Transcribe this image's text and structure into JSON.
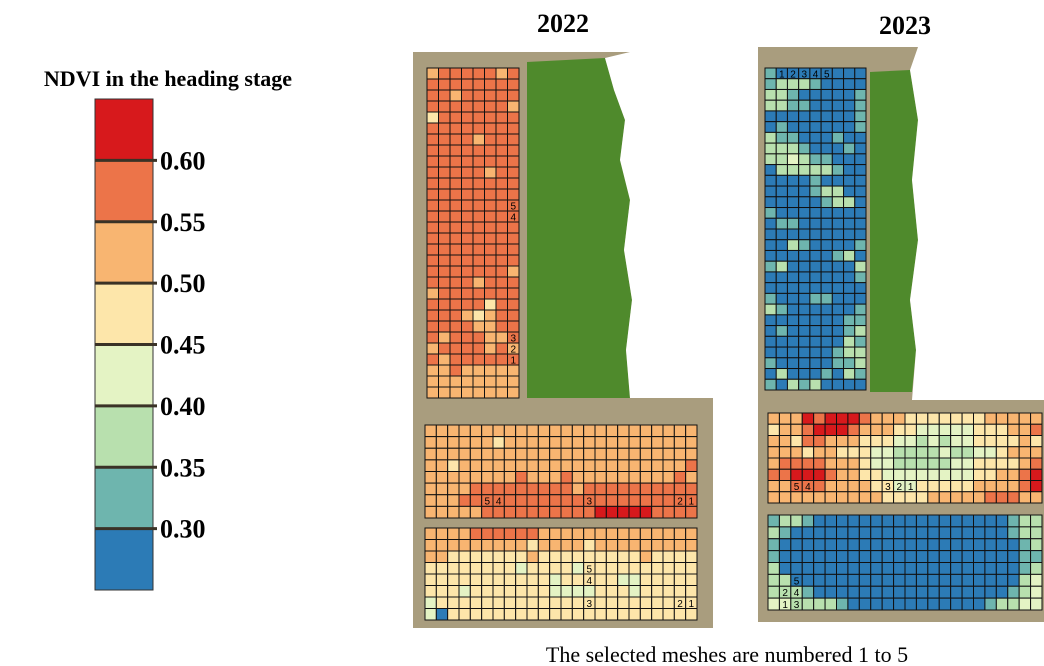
{
  "legend": {
    "title": "NDVI in the heading stage",
    "lim": [
      0.25,
      0.65
    ],
    "ticks": [
      {
        "value": 0.3,
        "label": "0.30"
      },
      {
        "value": 0.35,
        "label": "0.35"
      },
      {
        "value": 0.4,
        "label": "0.40"
      },
      {
        "value": 0.45,
        "label": "0.45"
      },
      {
        "value": 0.5,
        "label": "0.50"
      },
      {
        "value": 0.55,
        "label": "0.55"
      },
      {
        "value": 0.6,
        "label": "0.60"
      }
    ],
    "colors": [
      "#2c7bb6",
      "#6eb5ae",
      "#b8e0ae",
      "#e4f3c4",
      "#fde6aa",
      "#f8b571",
      "#ec7449",
      "#d7191c"
    ]
  },
  "maps": [
    {
      "year": "2022",
      "fields": [
        {
          "rows": [
            "56666656",
            "66666666",
            "66566666",
            "66666665",
            "46666666",
            "66666666",
            "66665666",
            "66666666",
            "66666666",
            "66666566",
            "66666666",
            "66666666",
            "66666666",
            "66666666",
            "66666666",
            "66666666",
            "66666666",
            "66666666",
            "66666665",
            "66665666",
            "56666666",
            "66666466",
            "66654566",
            "66665566",
            "65666556",
            "56666565",
            "65666666",
            "55655555",
            "55555555",
            "55555555"
          ],
          "meshes": [
            {
              "text": "5",
              "row": 12,
              "col": 7
            },
            {
              "text": "4",
              "row": 13,
              "col": 7
            },
            {
              "text": "3",
              "row": 24,
              "col": 7
            },
            {
              "text": "2",
              "row": 25,
              "col": 7
            },
            {
              "text": "1",
              "row": 26,
              "col": 7
            }
          ]
        },
        {
          "rows": [
            "555555555555555555555555",
            "555555455555555555555555",
            "555555555555555555555555",
            "554555555555555555555556",
            "555555556555655555555565",
            "555566666666656666666666",
            "555666666666666666666666",
            "555556666666666777776666"
          ],
          "meshes": [
            {
              "text": "5",
              "row": 6,
              "col": 5
            },
            {
              "text": "4",
              "row": 6,
              "col": 6
            },
            {
              "text": "3",
              "row": 6,
              "col": 14
            },
            {
              "text": "2",
              "row": 6,
              "col": 22
            },
            {
              "text": "1",
              "row": 6,
              "col": 23
            }
          ]
        },
        {
          "rows": [
            "555566666655555555555555",
            "555555555455554555555555",
            "554444444544444444454444",
            "444444443444434444444444",
            "444444444443444443344444",
            "444344444443333444344444",
            "344444444444444444444444",
            "304444444444444444444444"
          ],
          "meshes": [
            {
              "text": "5",
              "row": 3,
              "col": 14
            },
            {
              "text": "4",
              "row": 4,
              "col": 14
            },
            {
              "text": "3",
              "row": 6,
              "col": 14
            },
            {
              "text": "2",
              "row": 6,
              "col": 22
            },
            {
              "text": "1",
              "row": 6,
              "col": 23
            }
          ]
        }
      ]
    },
    {
      "year": "2023",
      "fields": [
        {
          "rows": [
            "100000000",
            "122210000",
            "221000001",
            "221100001",
            "000000001",
            "010000001",
            "211000100",
            "222100010",
            "223211000",
            "022222100",
            "000010000",
            "000012200",
            "000001220",
            "100000000",
            "011000000",
            "000000000",
            "002100001",
            "000000120",
            "120000002",
            "000000001",
            "000000000",
            "100011000",
            "210000001",
            "000000011",
            "010000012",
            "000000021",
            "000000122",
            "100000112",
            "020001021",
            "102120000"
          ],
          "meshes": [
            {
              "text": "1",
              "row": 0,
              "col": 1
            },
            {
              "text": "2",
              "row": 0,
              "col": 2
            },
            {
              "text": "3",
              "row": 0,
              "col": 3
            },
            {
              "text": "4",
              "row": 0,
              "col": 4
            },
            {
              "text": "5",
              "row": 0,
              "col": 5
            }
          ]
        },
        {
          "rows": [
            "555767776555444444455555",
            "455677765554433333444556",
            "554665554443323233444454",
            "555455444332222322334555",
            "566665554332222233444456",
            "667776554433333333445567",
            "556665555443344444555567",
            "555555555544445555566655"
          ],
          "meshes": [
            {
              "text": "5",
              "row": 6,
              "col": 2
            },
            {
              "text": "4",
              "row": 6,
              "col": 3
            },
            {
              "text": "3",
              "row": 6,
              "col": 10
            },
            {
              "text": "2",
              "row": 6,
              "col": 11
            },
            {
              "text": "1",
              "row": 6,
              "col": 12
            }
          ]
        },
        {
          "rows": [
            "122100000000000000000122",
            "210000000000000000000122",
            "100000000000000000000012",
            "100000000000000000000011",
            "200000000000000000000012",
            "220000000000000000000023",
            "222100000000000000000123",
            "332222100000000000012233"
          ],
          "meshes": [
            {
              "text": "5",
              "row": 5,
              "col": 2
            },
            {
              "text": "2",
              "row": 6,
              "col": 1
            },
            {
              "text": "4",
              "row": 6,
              "col": 2
            },
            {
              "text": "1",
              "row": 7,
              "col": 1
            },
            {
              "text": "3",
              "row": 7,
              "col": 2
            }
          ]
        }
      ]
    }
  ],
  "caption": "The selected meshes are numbered 1 to 5"
}
